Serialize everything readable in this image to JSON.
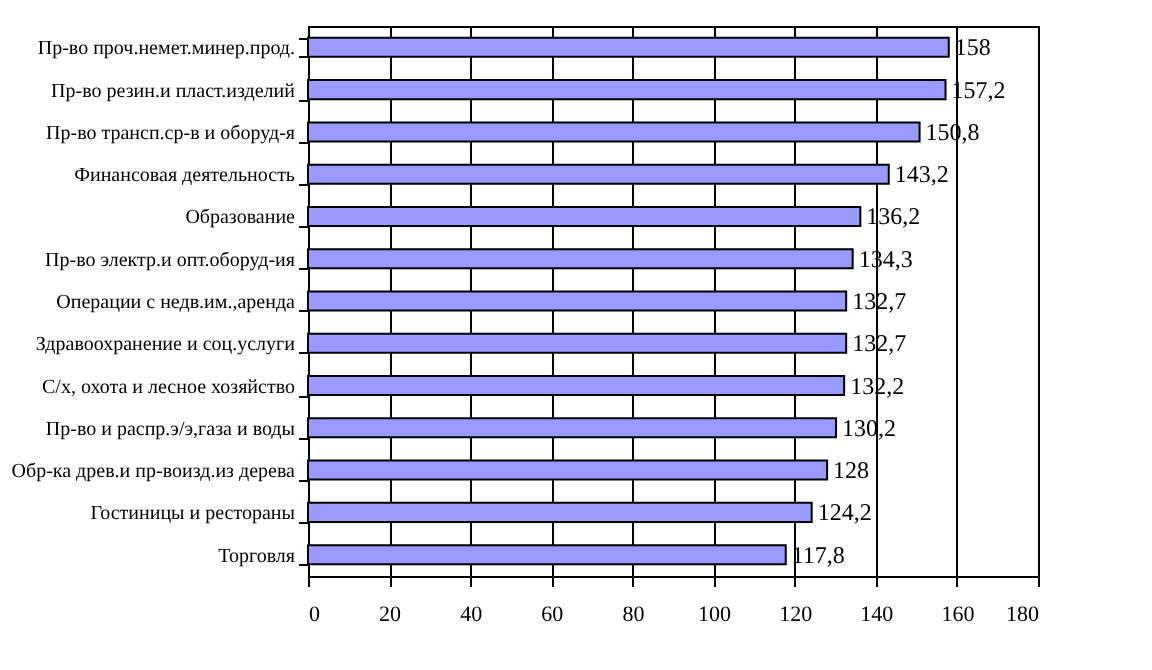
{
  "chart_data": {
    "type": "bar",
    "orientation": "horizontal",
    "categories": [
      "Пр-во проч.немет.минер.прод.",
      "Пр-во резин.и пласт.изделий",
      "Пр-во трансп.ср-в и оборуд-я",
      "Финансовая деятельность",
      "Образование",
      "Пр-во электр.и опт.оборуд-ия",
      "Операции с недв.им.,аренда",
      "Здравоохранение и соц.услуги",
      "С/х, охота и лесное хозяйство",
      "Пр-во и распр.э/э,газа и воды",
      "Обр-ка древ.и пр-воизд.из дерева",
      "Гостиницы и рестораны",
      "Торговля"
    ],
    "values": [
      158,
      157.2,
      150.8,
      143.2,
      136.2,
      134.3,
      132.7,
      132.7,
      132.2,
      130.2,
      128,
      124.2,
      117.8
    ],
    "value_labels": [
      "158",
      "157,2",
      "150,8",
      "143,2",
      "136,2",
      "134,3",
      "132,7",
      "132,7",
      "132,2",
      "130,2",
      "128",
      "124,2",
      "117,8"
    ],
    "color": "#9999ff",
    "xlim": [
      0,
      180
    ],
    "xticks": [
      0,
      20,
      40,
      60,
      80,
      100,
      120,
      140,
      160,
      180
    ],
    "grid": "x"
  }
}
